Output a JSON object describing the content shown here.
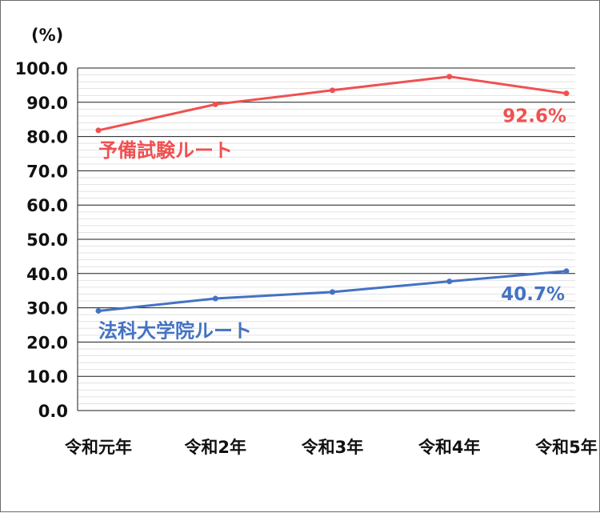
{
  "chart_data": {
    "type": "line",
    "title": "",
    "unit_label": "(%)",
    "xlabel": "",
    "ylabel": "",
    "ylim": [
      0,
      100
    ],
    "ytick_step": 10,
    "ytick_labels": [
      "0.0",
      "10.0",
      "20.0",
      "30.0",
      "40.0",
      "50.0",
      "60.0",
      "70.0",
      "80.0",
      "90.0",
      "100.0"
    ],
    "grid": true,
    "categories": [
      "令和元年",
      "令和2年",
      "令和3年",
      "令和4年",
      "令和5年"
    ],
    "series": [
      {
        "name": "予備試験ルート",
        "color": "#f05050",
        "values": [
          81.8,
          89.4,
          93.5,
          97.5,
          92.6
        ],
        "end_label": "92.6%"
      },
      {
        "name": "法科大学院ルート",
        "color": "#4472c4",
        "values": [
          29.1,
          32.7,
          34.6,
          37.7,
          40.7
        ],
        "end_label": "40.7%"
      }
    ]
  }
}
